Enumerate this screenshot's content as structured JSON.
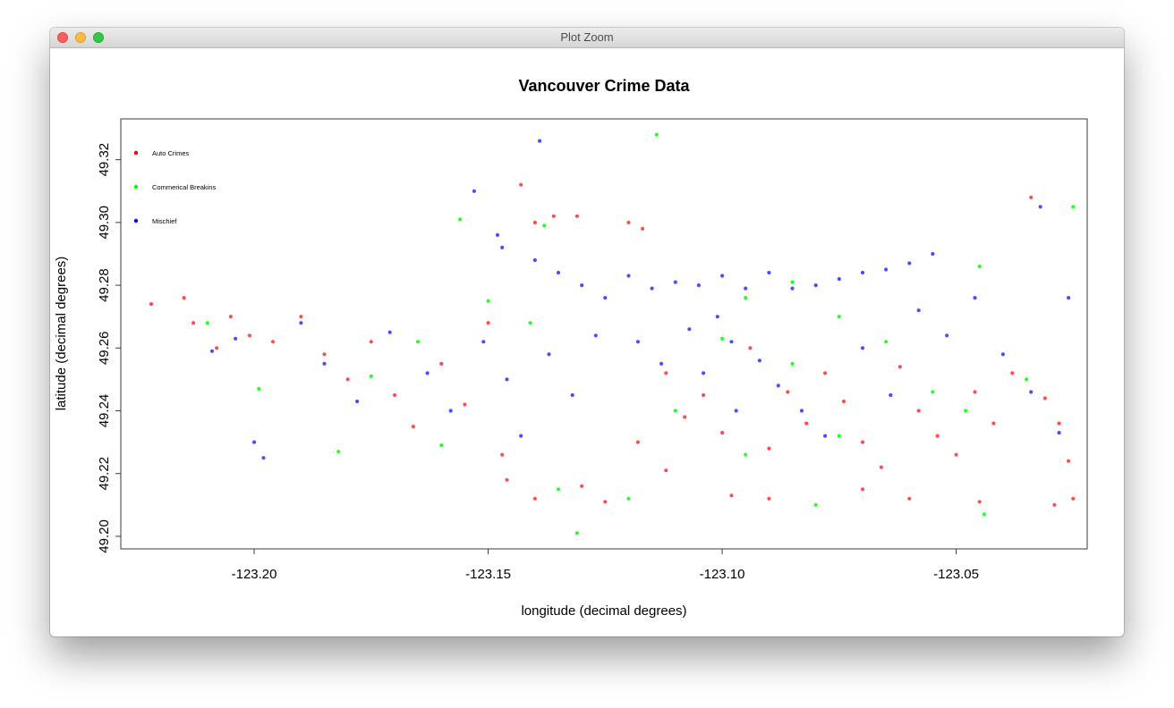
{
  "window": {
    "title": "Plot Zoom",
    "buttons": {
      "close": "close",
      "minimize": "minimize",
      "zoom": "zoom"
    }
  },
  "colors": {
    "auto_crimes": "#ff0000",
    "auto_crimes_light": "#ff8080",
    "commercial_breakins": "#00ff00",
    "mischief": "#0000ff",
    "mischief_light": "#8080ff"
  },
  "chart_data": {
    "type": "scatter",
    "title": "Vancouver Crime Data",
    "xlabel": "longitude (decimal degrees)",
    "ylabel": "latitude (decimal degrees)",
    "xlim": [
      -123.2285,
      -123.022
    ],
    "ylim": [
      49.196,
      49.333
    ],
    "x_ticks": [
      -123.2,
      -123.15,
      -123.1,
      -123.05
    ],
    "x_tick_labels": [
      "-123.20",
      "-123.15",
      "-123.10",
      "-123.05"
    ],
    "y_ticks": [
      49.2,
      49.22,
      49.24,
      49.26,
      49.28,
      49.3,
      49.32
    ],
    "y_tick_labels": [
      "49.20",
      "49.22",
      "49.24",
      "49.26",
      "49.28",
      "49.30",
      "49.32"
    ],
    "grid": false,
    "legend_position": "top-left",
    "series": [
      {
        "name": "Auto Crimes",
        "color": "#ff0000",
        "points": [
          [
            -123.222,
            49.274
          ],
          [
            -123.215,
            49.276
          ],
          [
            -123.213,
            49.268
          ],
          [
            -123.205,
            49.27
          ],
          [
            -123.208,
            49.26
          ],
          [
            -123.201,
            49.264
          ],
          [
            -123.196,
            49.262
          ],
          [
            -123.19,
            49.27
          ],
          [
            -123.185,
            49.258
          ],
          [
            -123.18,
            49.25
          ],
          [
            -123.175,
            49.262
          ],
          [
            -123.17,
            49.245
          ],
          [
            -123.166,
            49.235
          ],
          [
            -123.16,
            49.255
          ],
          [
            -123.155,
            49.242
          ],
          [
            -123.15,
            49.268
          ],
          [
            -123.147,
            49.226
          ],
          [
            -123.143,
            49.312
          ],
          [
            -123.14,
            49.3
          ],
          [
            -123.136,
            49.302
          ],
          [
            -123.131,
            49.302
          ],
          [
            -123.12,
            49.3
          ],
          [
            -123.117,
            49.298
          ],
          [
            -123.112,
            49.252
          ],
          [
            -123.108,
            49.238
          ],
          [
            -123.104,
            49.245
          ],
          [
            -123.1,
            49.233
          ],
          [
            -123.098,
            49.213
          ],
          [
            -123.094,
            49.26
          ],
          [
            -123.09,
            49.228
          ],
          [
            -123.086,
            49.246
          ],
          [
            -123.082,
            49.236
          ],
          [
            -123.078,
            49.252
          ],
          [
            -123.074,
            49.243
          ],
          [
            -123.07,
            49.23
          ],
          [
            -123.066,
            49.222
          ],
          [
            -123.062,
            49.254
          ],
          [
            -123.058,
            49.24
          ],
          [
            -123.054,
            49.232
          ],
          [
            -123.05,
            49.226
          ],
          [
            -123.046,
            49.246
          ],
          [
            -123.042,
            49.236
          ],
          [
            -123.038,
            49.252
          ],
          [
            -123.034,
            49.308
          ],
          [
            -123.031,
            49.244
          ],
          [
            -123.028,
            49.236
          ],
          [
            -123.026,
            49.224
          ],
          [
            -123.025,
            49.212
          ],
          [
            -123.029,
            49.21
          ],
          [
            -123.146,
            49.218
          ],
          [
            -123.14,
            49.212
          ],
          [
            -123.13,
            49.216
          ],
          [
            -123.125,
            49.211
          ],
          [
            -123.118,
            49.23
          ],
          [
            -123.112,
            49.221
          ],
          [
            -123.09,
            49.212
          ],
          [
            -123.07,
            49.215
          ],
          [
            -123.06,
            49.212
          ],
          [
            -123.045,
            49.211
          ]
        ]
      },
      {
        "name": "Commerical Breakins",
        "color": "#00ff00",
        "points": [
          [
            -123.114,
            49.328
          ],
          [
            -123.156,
            49.301
          ],
          [
            -123.138,
            49.299
          ],
          [
            -123.025,
            49.305
          ],
          [
            -123.045,
            49.286
          ],
          [
            -123.095,
            49.276
          ],
          [
            -123.085,
            49.281
          ],
          [
            -123.075,
            49.27
          ],
          [
            -123.065,
            49.262
          ],
          [
            -123.15,
            49.275
          ],
          [
            -123.141,
            49.268
          ],
          [
            -123.135,
            49.215
          ],
          [
            -123.131,
            49.201
          ],
          [
            -123.12,
            49.212
          ],
          [
            -123.11,
            49.24
          ],
          [
            -123.1,
            49.263
          ],
          [
            -123.095,
            49.226
          ],
          [
            -123.085,
            49.255
          ],
          [
            -123.08,
            49.21
          ],
          [
            -123.075,
            49.232
          ],
          [
            -123.055,
            49.246
          ],
          [
            -123.048,
            49.24
          ],
          [
            -123.044,
            49.207
          ],
          [
            -123.035,
            49.25
          ],
          [
            -123.165,
            49.262
          ],
          [
            -123.175,
            49.251
          ],
          [
            -123.199,
            49.247
          ],
          [
            -123.21,
            49.268
          ],
          [
            -123.182,
            49.227
          ],
          [
            -123.16,
            49.229
          ]
        ]
      },
      {
        "name": "Mischief",
        "color": "#0000ff",
        "points": [
          [
            -123.139,
            49.326
          ],
          [
            -123.148,
            49.296
          ],
          [
            -123.153,
            49.31
          ],
          [
            -123.147,
            49.292
          ],
          [
            -123.14,
            49.288
          ],
          [
            -123.135,
            49.284
          ],
          [
            -123.13,
            49.28
          ],
          [
            -123.125,
            49.276
          ],
          [
            -123.12,
            49.283
          ],
          [
            -123.115,
            49.279
          ],
          [
            -123.11,
            49.281
          ],
          [
            -123.105,
            49.28
          ],
          [
            -123.1,
            49.283
          ],
          [
            -123.095,
            49.279
          ],
          [
            -123.09,
            49.284
          ],
          [
            -123.085,
            49.279
          ],
          [
            -123.08,
            49.28
          ],
          [
            -123.075,
            49.282
          ],
          [
            -123.07,
            49.284
          ],
          [
            -123.065,
            49.285
          ],
          [
            -123.06,
            49.287
          ],
          [
            -123.055,
            49.29
          ],
          [
            -123.101,
            49.27
          ],
          [
            -123.098,
            49.262
          ],
          [
            -123.092,
            49.256
          ],
          [
            -123.088,
            49.248
          ],
          [
            -123.083,
            49.24
          ],
          [
            -123.078,
            49.232
          ],
          [
            -123.07,
            49.26
          ],
          [
            -123.064,
            49.245
          ],
          [
            -123.058,
            49.272
          ],
          [
            -123.052,
            49.264
          ],
          [
            -123.046,
            49.276
          ],
          [
            -123.04,
            49.258
          ],
          [
            -123.034,
            49.246
          ],
          [
            -123.028,
            49.233
          ],
          [
            -123.026,
            49.276
          ],
          [
            -123.032,
            49.305
          ],
          [
            -123.19,
            49.268
          ],
          [
            -123.185,
            49.255
          ],
          [
            -123.178,
            49.243
          ],
          [
            -123.171,
            49.265
          ],
          [
            -123.163,
            49.252
          ],
          [
            -123.158,
            49.24
          ],
          [
            -123.151,
            49.262
          ],
          [
            -123.146,
            49.25
          ],
          [
            -123.143,
            49.232
          ],
          [
            -123.137,
            49.258
          ],
          [
            -123.132,
            49.245
          ],
          [
            -123.127,
            49.264
          ],
          [
            -123.118,
            49.262
          ],
          [
            -123.113,
            49.255
          ],
          [
            -123.107,
            49.266
          ],
          [
            -123.104,
            49.252
          ],
          [
            -123.097,
            49.24
          ],
          [
            -123.2,
            49.23
          ],
          [
            -123.198,
            49.225
          ],
          [
            -123.204,
            49.263
          ],
          [
            -123.209,
            49.259
          ]
        ]
      }
    ]
  }
}
